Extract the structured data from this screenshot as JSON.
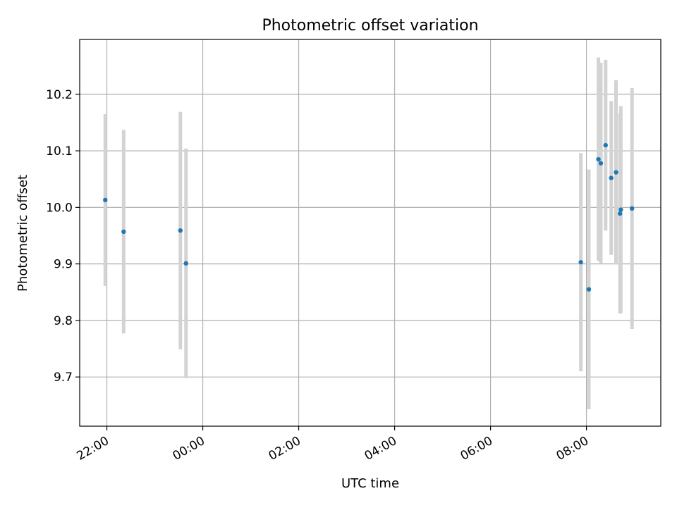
{
  "chart_data": {
    "type": "scatter",
    "title": "Photometric offset variation",
    "xlabel": "UTC time",
    "ylabel": "Photometric offset",
    "x_ticks": [
      "22:00",
      "00:00",
      "02:00",
      "04:00",
      "06:00",
      "08:00"
    ],
    "y_ticks": [
      "9.7",
      "9.8",
      "9.9",
      "10.0",
      "10.1",
      "10.2"
    ],
    "xlim": [
      "21:26",
      "09:33"
    ],
    "ylim": [
      9.613,
      10.297
    ],
    "grid": true,
    "point_color": "#1f77b4",
    "errorbar_color": "#d3d3d3",
    "points": [
      {
        "t": "21:58",
        "y": 10.013,
        "err": 0.152
      },
      {
        "t": "22:21",
        "y": 9.957,
        "err": 0.18
      },
      {
        "t": "23:32",
        "y": 9.959,
        "err": 0.21
      },
      {
        "t": "23:39",
        "y": 9.901,
        "err": 0.203
      },
      {
        "t": "07:53",
        "y": 9.903,
        "err": 0.193
      },
      {
        "t": "08:03",
        "y": 9.855,
        "err": 0.212
      },
      {
        "t": "08:15",
        "y": 10.085,
        "err": 0.18
      },
      {
        "t": "08:18",
        "y": 10.078,
        "err": 0.178
      },
      {
        "t": "08:24",
        "y": 10.11,
        "err": 0.151
      },
      {
        "t": "08:31",
        "y": 10.052,
        "err": 0.136
      },
      {
        "t": "08:37",
        "y": 10.062,
        "err": 0.163
      },
      {
        "t": "08:42",
        "y": 9.989,
        "err": 0.177
      },
      {
        "t": "08:43",
        "y": 9.996,
        "err": 0.183
      },
      {
        "t": "08:57",
        "y": 9.998,
        "err": 0.213
      }
    ]
  }
}
